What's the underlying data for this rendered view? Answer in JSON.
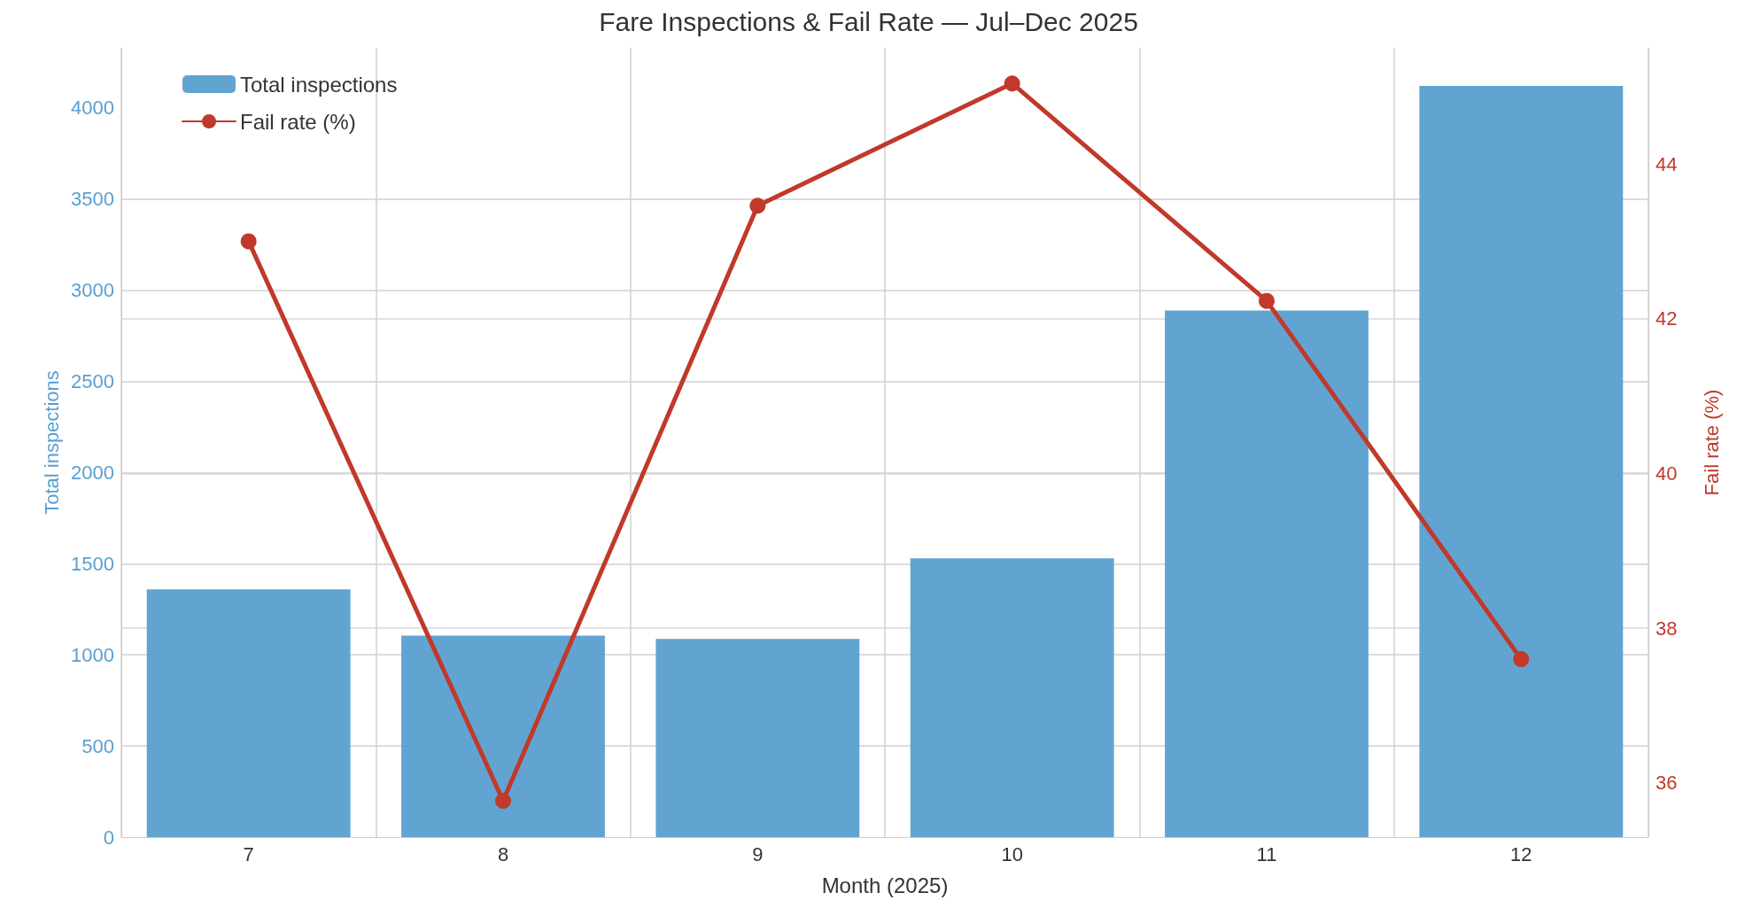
{
  "chart_data": {
    "type": "bar",
    "title": "Fare Inspections & Fail Rate — Jul–Dec 2025",
    "xlabel": "Month (2025)",
    "ylabel": "Total inspections",
    "y2label": "Fail rate (%)",
    "categories": [
      "7",
      "8",
      "9",
      "10",
      "11",
      "12"
    ],
    "series": [
      {
        "name": "Total inspections",
        "color": "#5a9fcf",
        "values": [
          1360,
          1105,
          1087,
          1530,
          2889,
          4121
        ]
      },
      {
        "name": "Fail rate (%)",
        "type": "line",
        "axis": "y2",
        "color": "#c0392b",
        "values": [
          43.0,
          35.77,
          43.46,
          45.04,
          42.23,
          37.6
        ]
      }
    ],
    "ylim": [
      0,
      4330
    ],
    "yticks": [
      0,
      500,
      1000,
      1500,
      2000,
      2500,
      3000,
      3500,
      4000
    ],
    "y2lim": [
      35.3,
      45.5
    ],
    "y2ticks": [
      36,
      38,
      40,
      42,
      44
    ],
    "grid": true,
    "legend": "top left",
    "marker": "circle",
    "line_style": "solid"
  }
}
